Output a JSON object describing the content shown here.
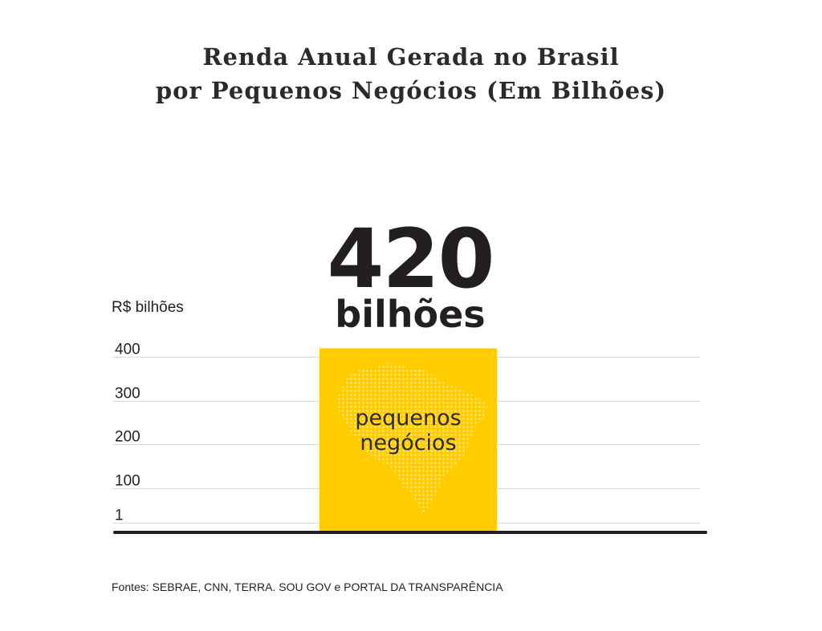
{
  "title": {
    "line1": "Renda Anual Gerada no Brasil",
    "line2": "por Pequenos Negócios (Em Bilhões)"
  },
  "source": "Fontes: SEBRAE, CNN, TERRA. SOU GOV e PORTAL DA TRANSPARÊNCIA",
  "colors": {
    "bar": "#ffcc00",
    "map_dots": "#ffe680",
    "axis": "#231f20",
    "grid": "#d9d9d9"
  },
  "chart_data": {
    "type": "bar",
    "title": "Renda Anual Gerada no Brasil por Pequenos Negócios (Em Bilhões)",
    "ylabel": "R$ bilhões",
    "yticks": [
      "1",
      "100",
      "200",
      "300",
      "400"
    ],
    "ytick_values": [
      1,
      100,
      200,
      300,
      400
    ],
    "ylim": [
      0,
      430
    ],
    "grid": true,
    "categories": [
      "pequenos negócios"
    ],
    "category_lines": [
      "pequenos",
      "negócios"
    ],
    "values": [
      420
    ],
    "value_label": "420",
    "value_unit": "bilhões",
    "bar_decoration": "brazil-map-dots"
  }
}
